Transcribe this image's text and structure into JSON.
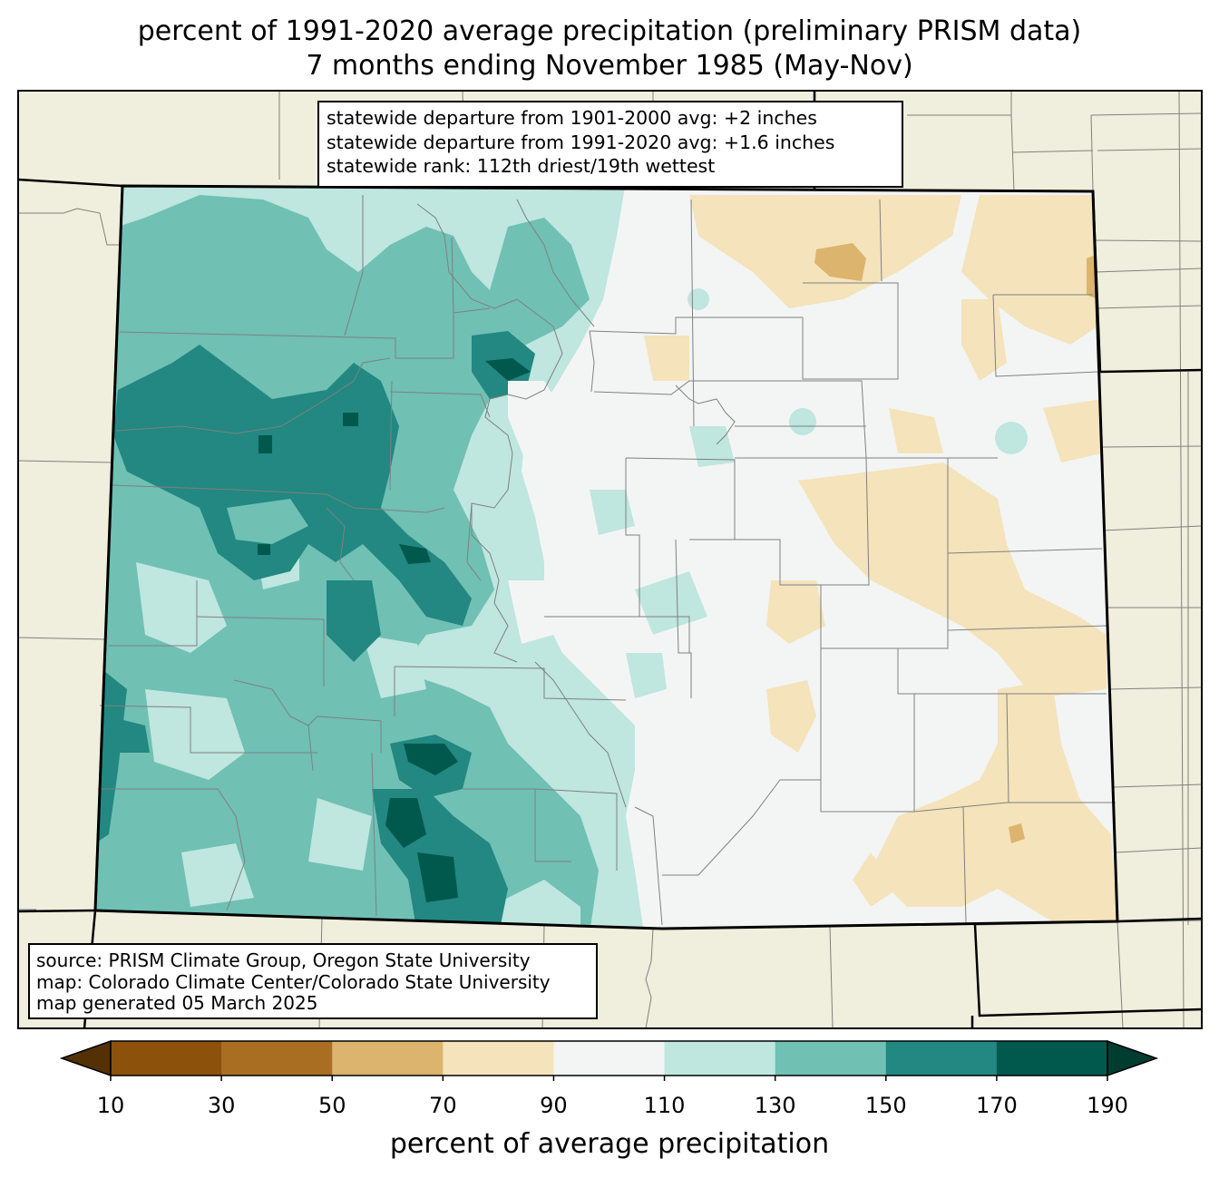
{
  "title": {
    "line1": "percent of 1991-2020 average precipitation (preliminary PRISM data)",
    "line2": "7 months ending November 1985 (May-Nov)"
  },
  "stats": {
    "line1": "statewide departure from 1901-2000 avg: +2 inches",
    "line2": "statewide departure from 1991-2020 avg: +1.6 inches",
    "line3": "statewide rank: 112th driest/19th wettest"
  },
  "source": {
    "line1": "source: PRISM Climate Group, Oregon State University",
    "line2": "map: Colorado Climate Center/Colorado State University",
    "line3": "map generated 05 March 2025"
  },
  "colorbar": {
    "label": "percent of average precipitation",
    "ticks": [
      "10",
      "30",
      "50",
      "70",
      "90",
      "110",
      "130",
      "150",
      "170",
      "190"
    ],
    "under_color": "#543005",
    "over_color": "#003c30",
    "bins": [
      {
        "range": "10-30",
        "color": "#8c510a"
      },
      {
        "range": "30-50",
        "color": "#a96e22"
      },
      {
        "range": "50-70",
        "color": "#dcb46e"
      },
      {
        "range": "70-90",
        "color": "#f4e3bb"
      },
      {
        "range": "90-110",
        "color": "#f3f5f4"
      },
      {
        "range": "110-130",
        "color": "#bfe6df"
      },
      {
        "range": "130-150",
        "color": "#70c0b4"
      },
      {
        "range": "150-170",
        "color": "#228881"
      },
      {
        "range": "170-190",
        "color": "#01594e"
      }
    ]
  },
  "colors": {
    "land": "#f0eedc",
    "near_normal": "#f3f5f4",
    "boundary": "#808080",
    "state_line": "#000000"
  }
}
